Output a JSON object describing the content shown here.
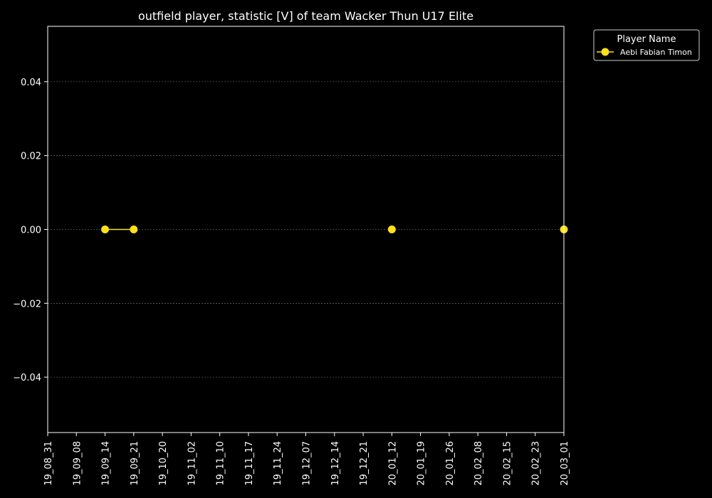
{
  "chart_data": {
    "type": "line",
    "title": "outfield player, statistic [V] of team Wacker Thun U17 Elite",
    "xlabel": "",
    "ylabel": "",
    "x_categories": [
      "19_08_31",
      "19_09_08",
      "19_09_14",
      "19_09_21",
      "19_10_20",
      "19_11_02",
      "19_11_10",
      "19_11_17",
      "19_11_24",
      "19_12_07",
      "19_12_14",
      "19_12_21",
      "20_01_12",
      "20_01_19",
      "20_01_26",
      "20_02_08",
      "20_02_15",
      "20_02_23",
      "20_03_01"
    ],
    "ylim": [
      -0.055,
      0.055
    ],
    "y_ticks": [
      "0.04",
      "0.02",
      "0.00",
      "−0.02",
      "−0.04"
    ],
    "y_tick_values": [
      0.04,
      0.02,
      0.0,
      -0.02,
      -0.04
    ],
    "grid": "y-dashed",
    "legend": {
      "title": "Player Name",
      "placement": "outside-top-right"
    },
    "series": [
      {
        "name": "Aebi Fabian Timon",
        "color": "#ffe11a",
        "points": [
          {
            "x": "19_09_14",
            "y": 0.0
          },
          {
            "x": "19_09_21",
            "y": 0.0
          },
          {
            "x": "20_01_12",
            "y": 0.0
          },
          {
            "x": "20_03_01",
            "y": 0.0
          }
        ]
      }
    ]
  },
  "colors": {
    "background": "#000000",
    "axes": "#ffffff",
    "grid": "#808080"
  }
}
